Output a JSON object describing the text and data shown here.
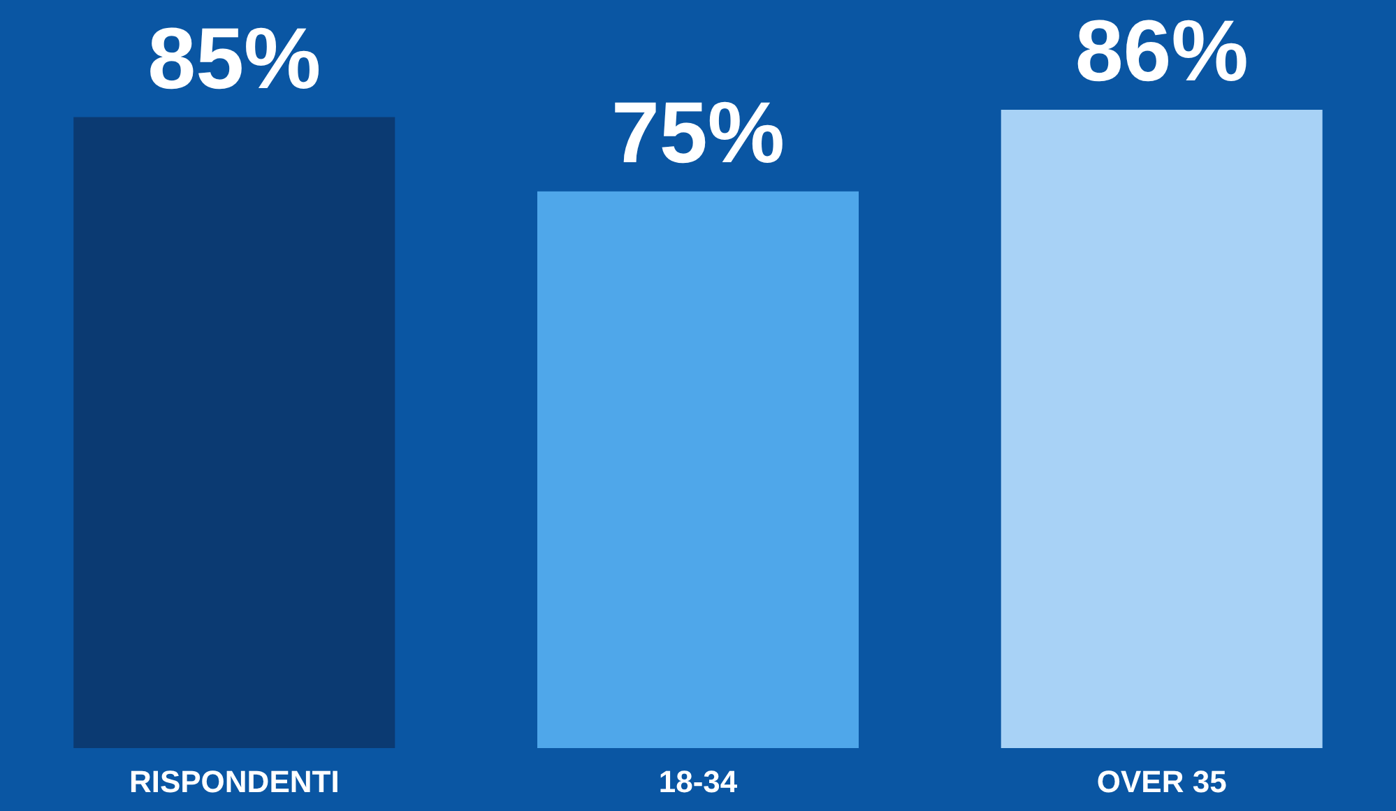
{
  "chart_data": {
    "type": "bar",
    "categories": [
      "RISPONDENTI",
      "18-34",
      "OVER 35"
    ],
    "values": [
      85,
      75,
      86
    ],
    "value_labels": [
      "85%",
      "75%",
      "86%"
    ],
    "colors": [
      "#0b3a72",
      "#4fa7ea",
      "#a8d2f6"
    ]
  }
}
